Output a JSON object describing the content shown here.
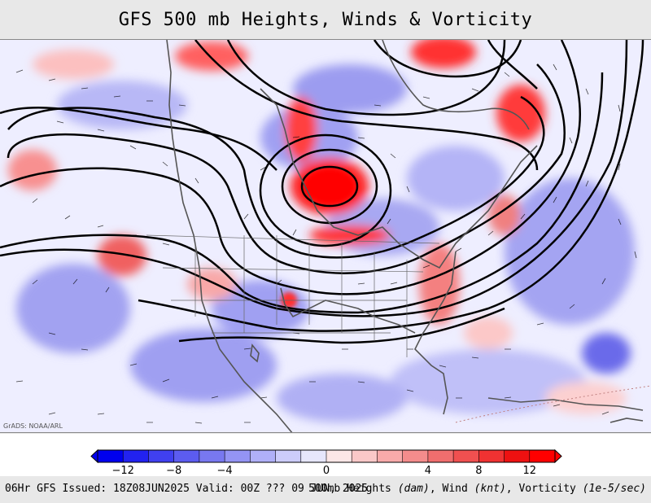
{
  "title": "GFS 500 mb Heights, Winds & Vorticity",
  "credit": "GrADS: NOAA/ARL",
  "colorbar": {
    "ticks": [
      "−12",
      "−8",
      "−4",
      "0",
      "4",
      "8",
      "12"
    ],
    "colors": [
      "#0000ee",
      "#2222f0",
      "#4040f0",
      "#5c5cf0",
      "#7878f0",
      "#9494f4",
      "#b0b0f8",
      "#ccccfa",
      "#e6e6fc",
      "#fce6e6",
      "#fac8c8",
      "#f8aaaa",
      "#f48c8c",
      "#f06e6e",
      "#f05050",
      "#f03232",
      "#ee1111",
      "#ff0000"
    ]
  },
  "footer": {
    "left": "06Hr GFS Issued: 18Z08JUN2025 Valid: 00Z ??? 09 JUN, 2025",
    "right_heights": "500mb Heights",
    "right_heights_unit": "(dam)",
    "right_wind": "Wind",
    "right_wind_unit": "(knt)",
    "right_vort": "Vorticity",
    "right_vort_unit": "(1e-5/sec)"
  }
}
